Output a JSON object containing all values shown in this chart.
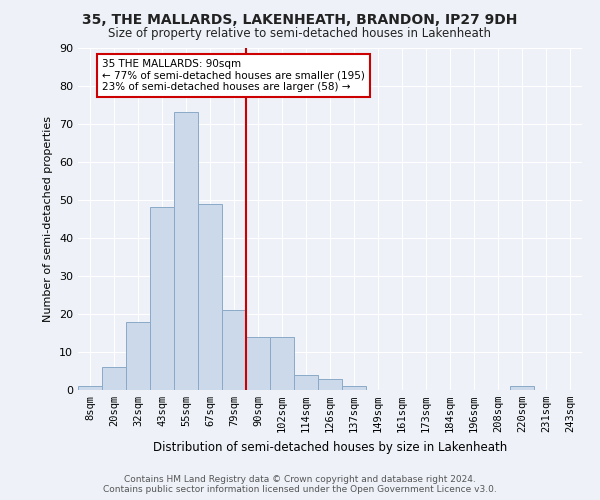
{
  "title1": "35, THE MALLARDS, LAKENHEATH, BRANDON, IP27 9DH",
  "title2": "Size of property relative to semi-detached houses in Lakenheath",
  "xlabel": "Distribution of semi-detached houses by size in Lakenheath",
  "ylabel": "Number of semi-detached properties",
  "bin_labels": [
    "8sqm",
    "20sqm",
    "32sqm",
    "43sqm",
    "55sqm",
    "67sqm",
    "79sqm",
    "90sqm",
    "102sqm",
    "114sqm",
    "126sqm",
    "137sqm",
    "149sqm",
    "161sqm",
    "173sqm",
    "184sqm",
    "196sqm",
    "208sqm",
    "220sqm",
    "231sqm",
    "243sqm"
  ],
  "bar_values": [
    1,
    6,
    18,
    48,
    73,
    49,
    21,
    14,
    14,
    4,
    3,
    1,
    0,
    0,
    0,
    0,
    0,
    0,
    1,
    0,
    0
  ],
  "bar_color": "#ccd9ea",
  "bar_edge_color": "#8aaac8",
  "annotation_title": "35 THE MALLARDS: 90sqm",
  "annotation_line1": "← 77% of semi-detached houses are smaller (195)",
  "annotation_line2": "23% of semi-detached houses are larger (58) →",
  "annotation_box_color": "#ffffff",
  "annotation_box_edge_color": "#cc0000",
  "vline_color": "#cc0000",
  "vline_bar_index": 7,
  "footer1": "Contains HM Land Registry data © Crown copyright and database right 2024.",
  "footer2": "Contains public sector information licensed under the Open Government Licence v3.0.",
  "ylim": [
    0,
    90
  ],
  "background_color": "#eef2f8"
}
